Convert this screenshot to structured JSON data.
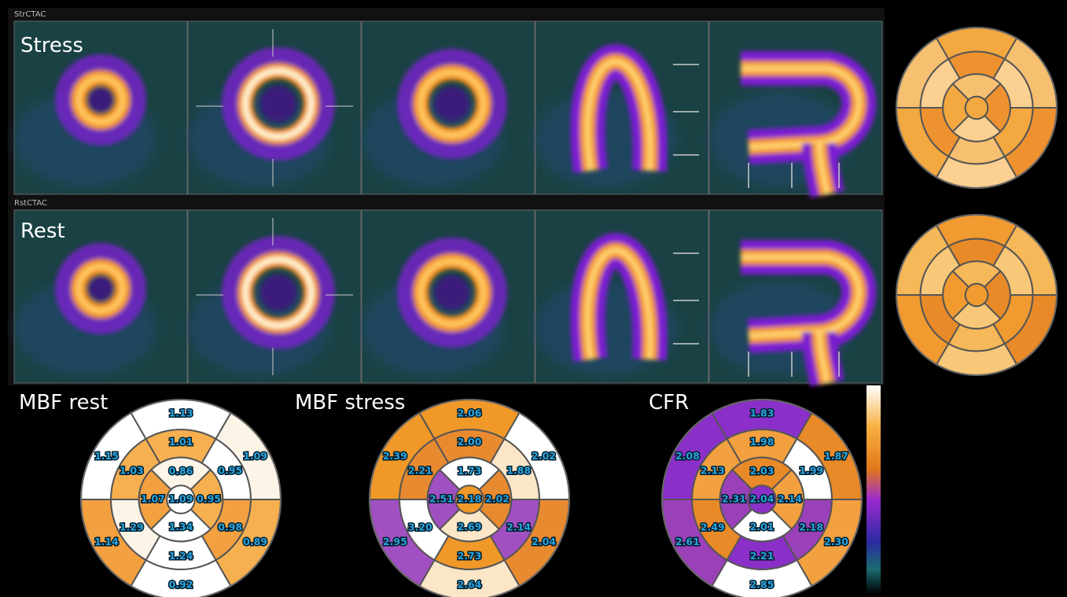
{
  "header": {
    "stress_series": "StrCTAC",
    "stress_title": "Stress",
    "rest_series": "RstCTAC",
    "rest_title": "Rest"
  },
  "polar_maps": [
    {
      "title": "MBF rest",
      "outer": [
        "1.13",
        "1.09",
        "0.89",
        "0.92",
        "1.14",
        "1.15"
      ],
      "middle": [
        "1.01",
        "0.95",
        "0.98",
        "1.24",
        "1.29",
        "1.03"
      ],
      "inner": [
        "0.86",
        "0.95",
        "1.34",
        "1.07"
      ],
      "apex": "1.09"
    },
    {
      "title": "MBF stress",
      "outer": [
        "2.06",
        "2.02",
        "2.04",
        "2.64",
        "2.95",
        "2.39"
      ],
      "middle": [
        "2.00",
        "1.88",
        "2.14",
        "2.73",
        "3.20",
        "2.21"
      ],
      "inner": [
        "1.73",
        "2.02",
        "2.69",
        "2.51"
      ],
      "apex": "2.18"
    },
    {
      "title": "CFR",
      "outer": [
        "1.83",
        "1.87",
        "2.30",
        "2.85",
        "2.61",
        "2.08"
      ],
      "middle": [
        "1.98",
        "1.99",
        "2.18",
        "2.21",
        "2.49",
        "2.13"
      ],
      "inner": [
        "2.03",
        "2.14",
        "2.01",
        "2.31"
      ],
      "apex": "2.04"
    }
  ]
}
